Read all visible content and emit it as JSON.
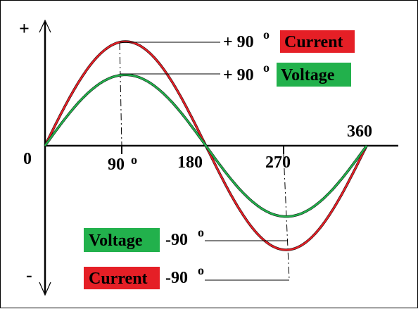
{
  "axis": {
    "plus": "+",
    "minus": "-",
    "origin": "0",
    "ticks": [
      "90",
      "180",
      "270",
      "360"
    ],
    "degree_mark": "o"
  },
  "annotations": {
    "current_peak": {
      "value": "+ 90",
      "sup": "o",
      "tag": "Current"
    },
    "voltage_peak": {
      "value": "+ 90",
      "sup": "o",
      "tag": "Voltage"
    },
    "voltage_trough": {
      "tag": "Voltage",
      "value": "-90",
      "sup": "o"
    },
    "current_trough": {
      "tag": "Current",
      "value": "-90",
      "sup": "o"
    }
  },
  "colors": {
    "current": "#e51f26",
    "voltage": "#22b14c",
    "axis": "#000000"
  },
  "waves": [
    {
      "name": "Current",
      "amplitude": 1.0
    },
    {
      "name": "Voltage",
      "amplitude": 0.68
    }
  ]
}
